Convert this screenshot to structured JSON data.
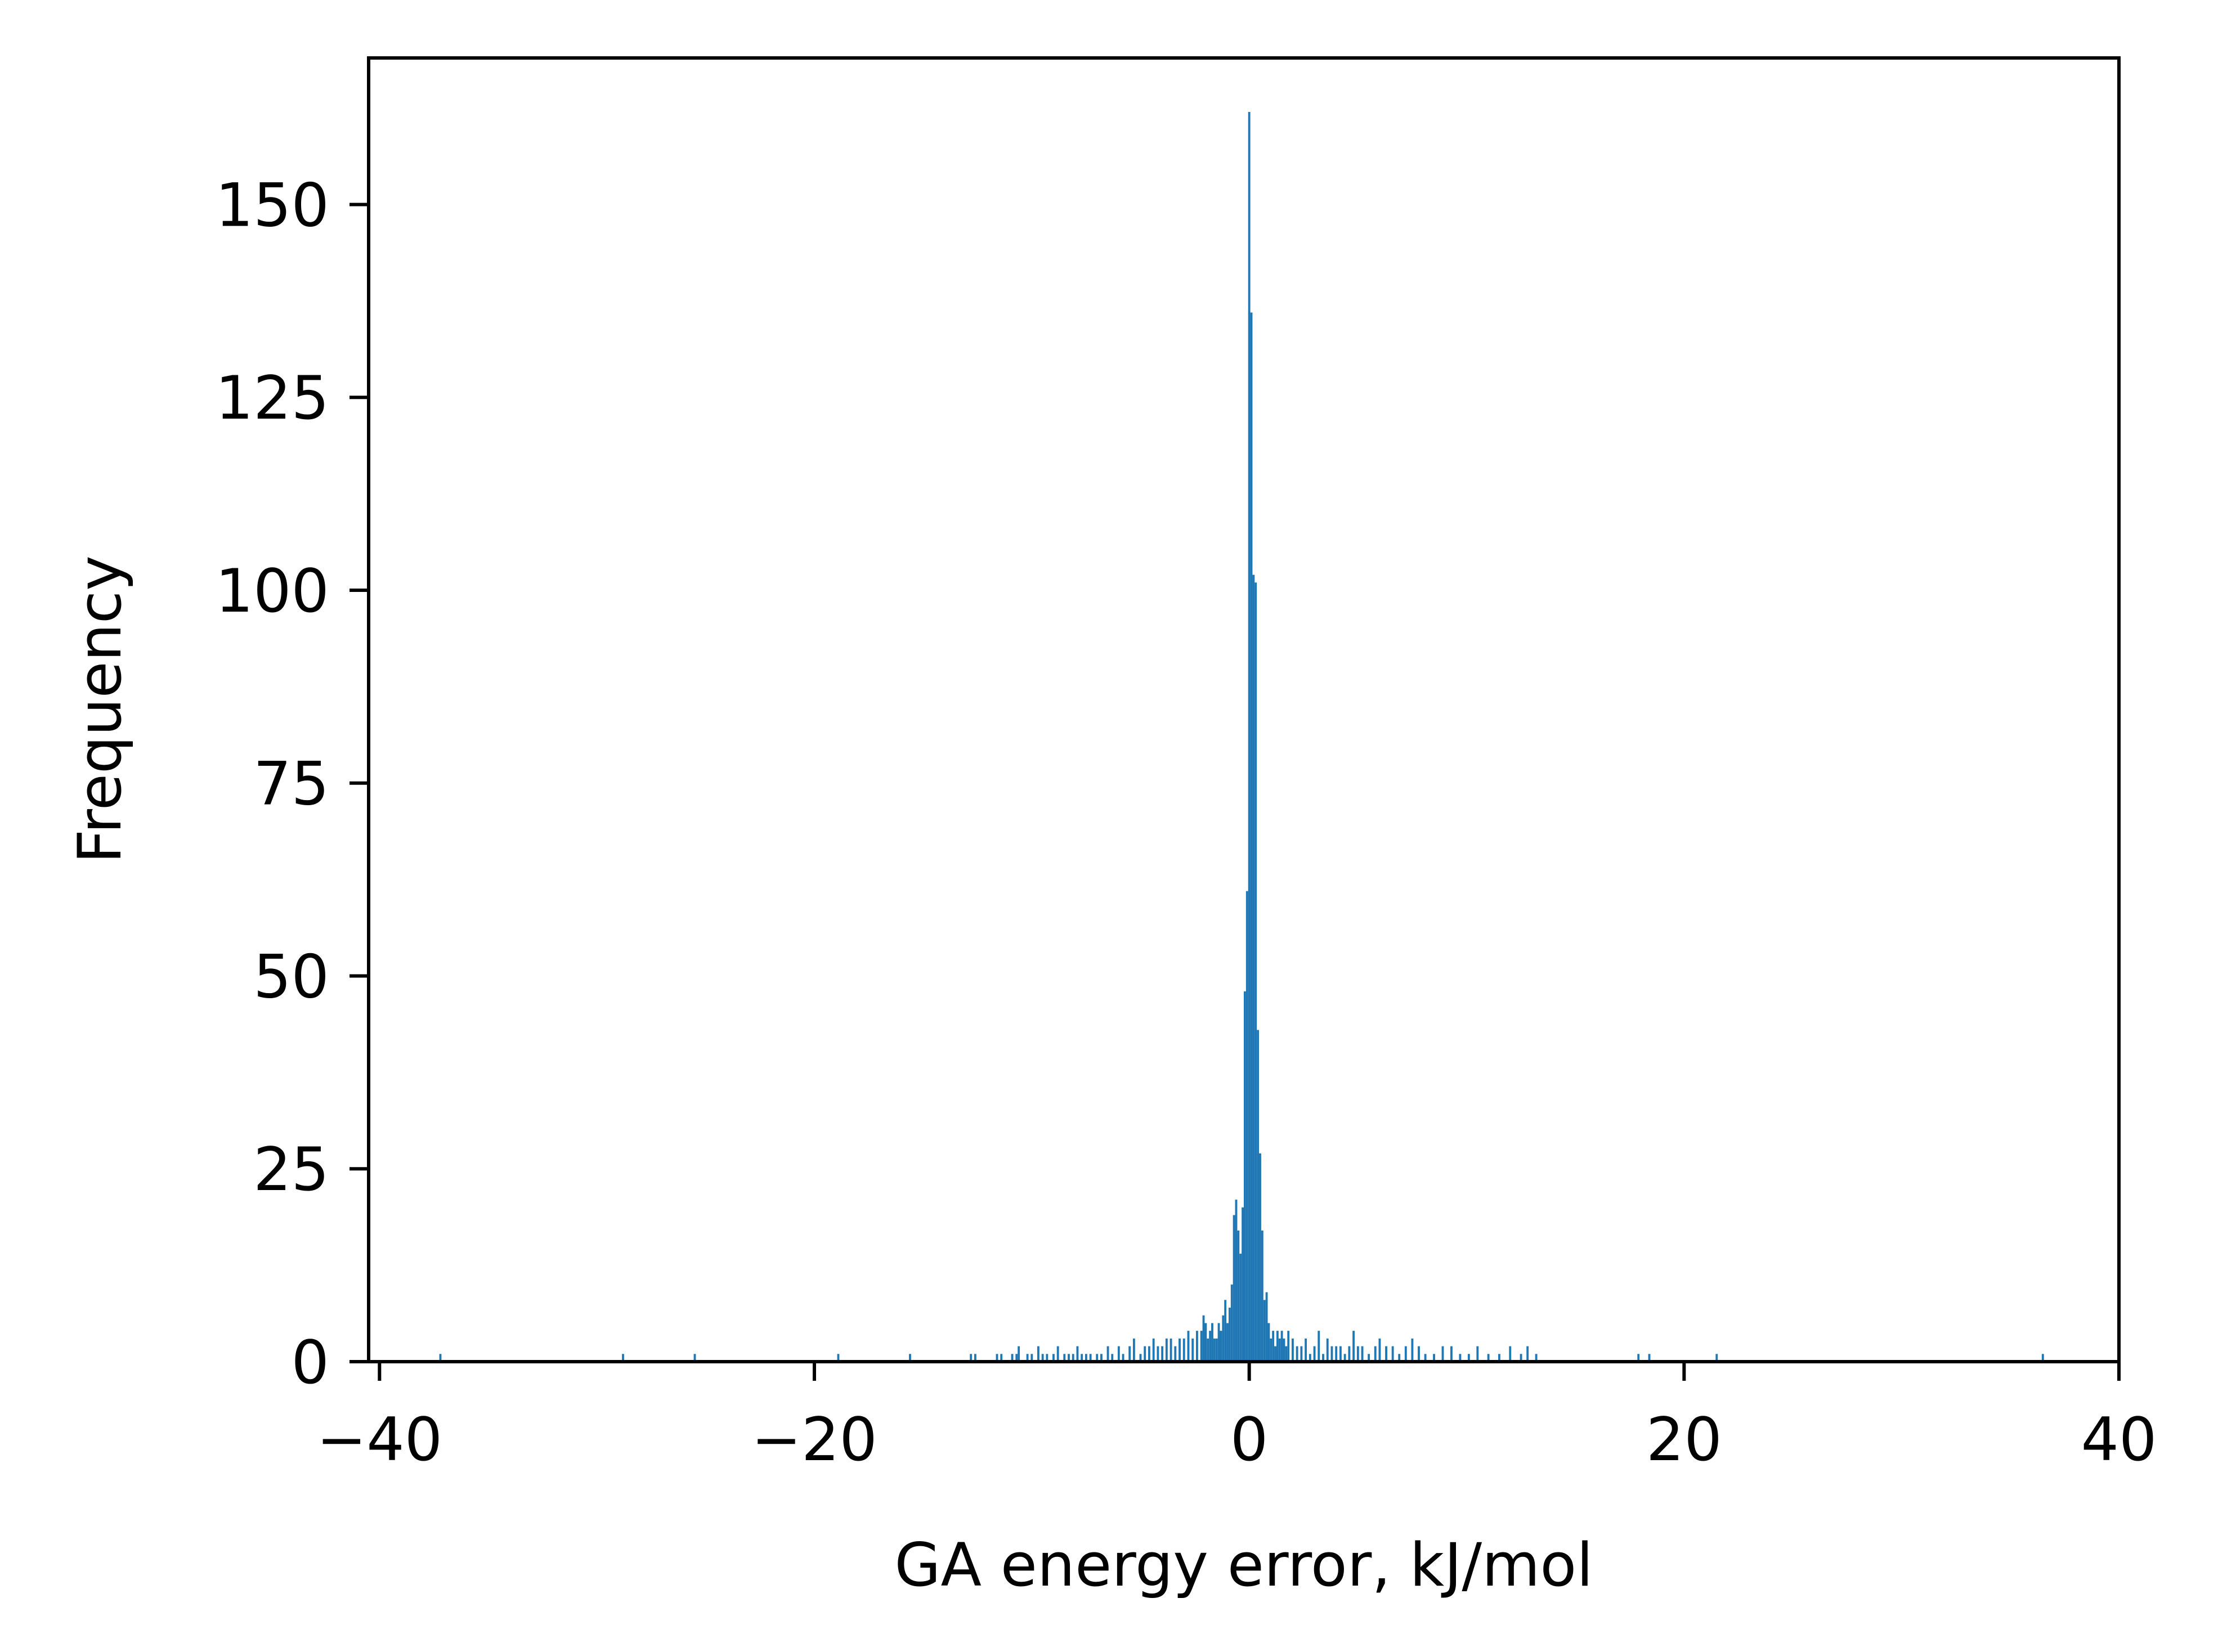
{
  "chart_data": {
    "type": "bar",
    "title": "",
    "xlabel": "GA energy error, kJ/mol",
    "ylabel": "Frequency",
    "xlim": [
      -40.5,
      40
    ],
    "ylim": [
      0,
      169
    ],
    "x_ticks": [
      -40,
      -20,
      0,
      20,
      40
    ],
    "x_tick_labels": [
      "−40",
      "−20",
      "0",
      "20",
      "40"
    ],
    "y_ticks": [
      0,
      25,
      50,
      75,
      100,
      125,
      150
    ],
    "y_tick_labels": [
      "0",
      "25",
      "50",
      "75",
      "100",
      "125",
      "150"
    ],
    "grid": false,
    "legend": "none",
    "bar_color": "#1f77b4",
    "bin_width": 0.1,
    "series": [
      {
        "x": [
          -37.2,
          -28.8,
          -25.5,
          -18.9,
          -15.6,
          -12.8,
          -12.6,
          -11.6,
          -11.4,
          -10.9,
          -10.7,
          -10.6,
          -10.2,
          -10.0,
          -9.7,
          -9.5,
          -9.3,
          -9.0,
          -8.8,
          -8.5,
          -8.3,
          -8.1,
          -7.9,
          -7.7,
          -7.5,
          -7.3,
          -7.0,
          -6.8,
          -6.5,
          -6.3,
          -6.0,
          -5.8,
          -5.5,
          -5.3,
          -5.0,
          -4.8,
          -4.6,
          -4.4,
          -4.2,
          -4.0,
          -3.8,
          -3.6,
          -3.4,
          -3.2,
          -3.0,
          -2.8,
          -2.6,
          -2.4,
          -2.2,
          -2.1,
          -2.0,
          -1.9,
          -1.8,
          -1.7,
          -1.6,
          -1.5,
          -1.4,
          -1.3,
          -1.2,
          -1.1,
          -1.0,
          -0.9,
          -0.8,
          -0.7,
          -0.6,
          -0.5,
          -0.4,
          -0.3,
          -0.2,
          -0.1,
          0.0,
          0.1,
          0.2,
          0.3,
          0.4,
          0.5,
          0.6,
          0.7,
          0.8,
          0.9,
          1.0,
          1.1,
          1.2,
          1.3,
          1.4,
          1.5,
          1.6,
          1.7,
          1.8,
          2.0,
          2.2,
          2.4,
          2.6,
          2.8,
          3.0,
          3.2,
          3.4,
          3.6,
          3.8,
          4.0,
          4.2,
          4.4,
          4.6,
          4.8,
          5.0,
          5.2,
          5.5,
          5.8,
          6.0,
          6.3,
          6.6,
          6.9,
          7.2,
          7.5,
          7.8,
          8.1,
          8.5,
          8.9,
          9.3,
          9.7,
          10.1,
          10.5,
          11.0,
          11.5,
          12.0,
          12.5,
          12.8,
          13.2,
          17.9,
          18.4,
          21.5,
          36.5
        ],
        "values": [
          1,
          1,
          1,
          1,
          1,
          1,
          1,
          1,
          1,
          1,
          1,
          2,
          1,
          1,
          2,
          1,
          1,
          1,
          2,
          1,
          1,
          1,
          2,
          1,
          1,
          1,
          1,
          1,
          2,
          1,
          2,
          1,
          2,
          3,
          1,
          2,
          2,
          3,
          2,
          2,
          3,
          3,
          2,
          3,
          3,
          4,
          3,
          4,
          4,
          6,
          5,
          3,
          4,
          5,
          3,
          3,
          5,
          4,
          6,
          8,
          5,
          7,
          10,
          19,
          21,
          17,
          14,
          20,
          48,
          61,
          162,
          136,
          102,
          101,
          43,
          27,
          17,
          8,
          9,
          5,
          3,
          4,
          2,
          4,
          3,
          4,
          3,
          2,
          4,
          3,
          2,
          2,
          3,
          1,
          2,
          4,
          1,
          3,
          2,
          2,
          2,
          1,
          2,
          4,
          2,
          2,
          1,
          2,
          3,
          2,
          2,
          1,
          2,
          3,
          2,
          1,
          1,
          2,
          2,
          1,
          1,
          2,
          1,
          1,
          2,
          1,
          2,
          1,
          1,
          1,
          1,
          1
        ]
      }
    ]
  }
}
